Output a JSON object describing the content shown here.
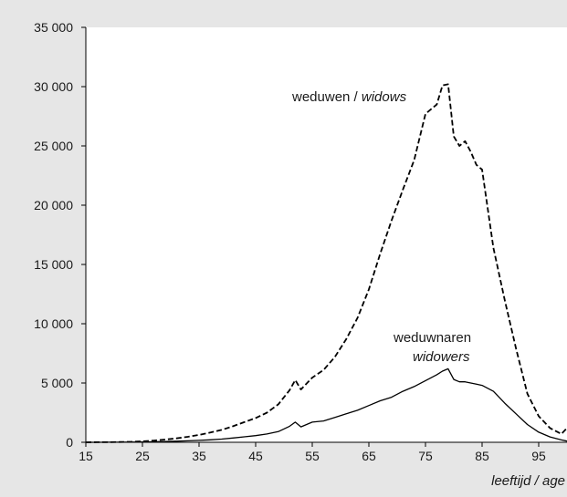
{
  "chart_data": {
    "type": "line",
    "title": "",
    "xlabel": "leeftijd / age",
    "ylabel": "",
    "xlim": [
      15,
      100
    ],
    "ylim": [
      0,
      35000
    ],
    "x_ticks": [
      15,
      25,
      35,
      45,
      55,
      65,
      75,
      85,
      95
    ],
    "y_ticks": [
      0,
      5000,
      10000,
      15000,
      20000,
      25000,
      30000,
      35000
    ],
    "x_tick_labels": [
      "15",
      "25",
      "35",
      "45",
      "55",
      "65",
      "75",
      "85",
      "95"
    ],
    "y_tick_labels": [
      "0",
      "5 000",
      "10 000",
      "15 000",
      "20 000",
      "25 000",
      "30 000",
      "35 000"
    ],
    "grid": false,
    "legend": "none",
    "series": [
      {
        "name_plain": "weduwen / ",
        "name_italic": "widows",
        "line_style": "dashed",
        "color": "#000000",
        "x": [
          15,
          17,
          19,
          21,
          23,
          25,
          27,
          29,
          31,
          33,
          35,
          37,
          39,
          41,
          43,
          45,
          47,
          49,
          51,
          52,
          53,
          55,
          57,
          59,
          61,
          63,
          65,
          67,
          69,
          71,
          73,
          75,
          77,
          78,
          79,
          80,
          81,
          82,
          83,
          84,
          85,
          87,
          89,
          91,
          93,
          95,
          97,
          99,
          100
        ],
        "y": [
          0,
          5,
          10,
          20,
          40,
          80,
          150,
          230,
          330,
          460,
          620,
          820,
          1050,
          1350,
          1700,
          2050,
          2500,
          3200,
          4400,
          5250,
          4450,
          5450,
          6100,
          7200,
          8700,
          10500,
          12900,
          15900,
          18700,
          21300,
          23800,
          27700,
          28500,
          30100,
          30200,
          25800,
          25000,
          25400,
          24500,
          23400,
          23000,
          16400,
          12000,
          7900,
          4100,
          2200,
          1200,
          700,
          1200
        ]
      },
      {
        "name_plain": "weduwnaren",
        "name_italic": "widowers",
        "line_style": "solid",
        "color": "#000000",
        "x": [
          15,
          17,
          19,
          21,
          23,
          25,
          27,
          29,
          31,
          33,
          35,
          37,
          39,
          41,
          43,
          45,
          47,
          49,
          51,
          52,
          53,
          55,
          57,
          59,
          61,
          63,
          65,
          67,
          69,
          71,
          73,
          75,
          77,
          78,
          79,
          80,
          81,
          82,
          83,
          84,
          85,
          87,
          89,
          91,
          93,
          95,
          97,
          99,
          100
        ],
        "y": [
          0,
          2,
          4,
          8,
          15,
          30,
          45,
          65,
          90,
          120,
          160,
          210,
          270,
          360,
          460,
          560,
          700,
          900,
          1350,
          1700,
          1300,
          1700,
          1800,
          2100,
          2400,
          2700,
          3100,
          3500,
          3800,
          4300,
          4700,
          5200,
          5700,
          6000,
          6200,
          5300,
          5100,
          5100,
          5000,
          4900,
          4800,
          4300,
          3300,
          2400,
          1500,
          850,
          450,
          200,
          100
        ]
      }
    ]
  }
}
